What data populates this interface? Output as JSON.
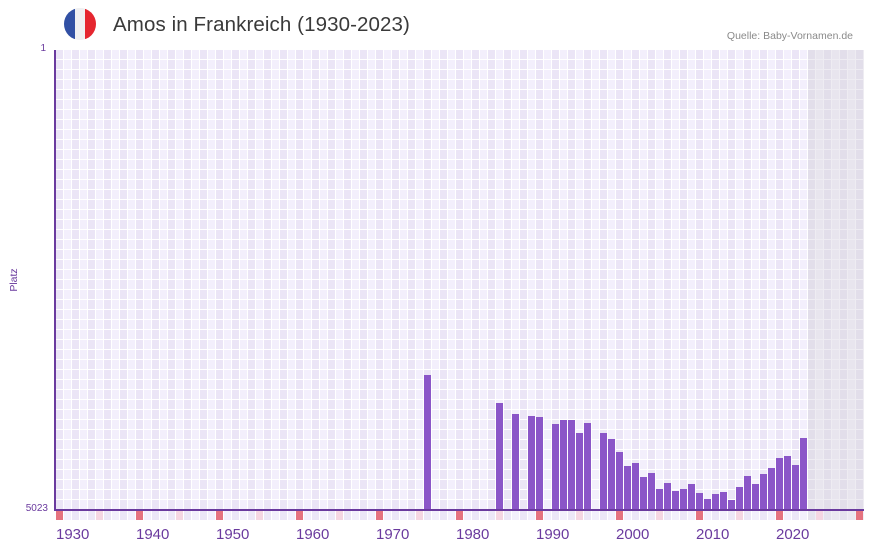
{
  "header": {
    "flag": {
      "icon": "france-flag-icon",
      "colors": [
        "#3150a4",
        "#f0f0f2",
        "#e5262f"
      ]
    },
    "title": "Amos in Frankreich (1930-2023)",
    "source": "Quelle: Baby-Vornamen.de"
  },
  "axes": {
    "y_label": "Platz",
    "y_top_label": "1",
    "y_bottom_label": "5023"
  },
  "colors": {
    "bar": "#8b56c8",
    "axis": "#6a3a9e",
    "decade_marker": "#e5737f",
    "half_decade_marker": "#f5d6e2"
  },
  "chart_data": {
    "type": "bar",
    "title": "Amos in Frankreich (1930-2023)",
    "xlabel": "",
    "ylabel": "Platz",
    "y_axis": {
      "top": 1,
      "bottom": 5023,
      "inverted": true
    },
    "x_range": [
      1930,
      2030
    ],
    "x_ticks": [
      1930,
      1940,
      1950,
      1960,
      1970,
      1980,
      1990,
      2000,
      2010,
      2020
    ],
    "projection_shading_from": 2024,
    "grid": true,
    "legend": null,
    "categories": [
      1976,
      1985,
      1987,
      1989,
      1990,
      1992,
      1993,
      1994,
      1995,
      1996,
      1998,
      1999,
      2000,
      2001,
      2002,
      2003,
      2004,
      2005,
      2006,
      2007,
      2008,
      2009,
      2010,
      2011,
      2012,
      2013,
      2014,
      2015,
      2016,
      2017,
      2018,
      2019,
      2020,
      2021,
      2022,
      2023
    ],
    "values": [
      3549,
      3855,
      3975,
      3997,
      4008,
      4084,
      4040,
      4040,
      4182,
      4073,
      4182,
      4248,
      4390,
      4543,
      4510,
      4663,
      4619,
      4794,
      4728,
      4816,
      4794,
      4739,
      4837,
      4903,
      4848,
      4826,
      4914,
      4772,
      4652,
      4739,
      4630,
      4564,
      4455,
      4433,
      4532,
      4237
    ]
  }
}
